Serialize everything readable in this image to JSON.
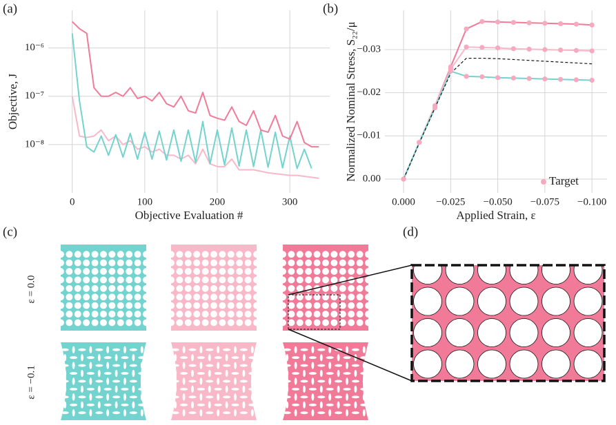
{
  "chart_data": [
    {
      "type": "line",
      "log": true,
      "grid": true,
      "x_label": "Objective Evaluation #",
      "y_label": "Objective, J",
      "xlim": [
        -33,
        355
      ],
      "ylim": [
        1e-09,
        6e-06
      ],
      "xticks": [
        0,
        100,
        200,
        300
      ],
      "yticks": [
        {
          "value": 1e-08,
          "label": "10⁻⁸"
        },
        {
          "value": 1e-07,
          "label": "10⁻⁷"
        },
        {
          "value": 1e-06,
          "label": "10⁻⁶"
        }
      ],
      "series": [
        {
          "color": "#f9b8c8",
          "x": [
            0,
            10,
            20,
            30,
            40,
            50,
            60,
            70,
            80,
            90,
            100,
            110,
            120,
            130,
            140,
            150,
            160,
            170,
            180,
            190,
            200,
            210,
            220,
            230,
            240,
            250,
            260,
            270,
            280,
            290,
            300,
            310,
            320,
            330,
            340
          ],
          "values": [
            1e-07,
            1.5e-08,
            1.4e-08,
            1.5e-08,
            2e-08,
            1.2e-08,
            1.5e-08,
            1e-08,
            1.2e-08,
            8e-09,
            9e-09,
            7e-09,
            8e-09,
            6e-09,
            6e-09,
            5e-09,
            6e-09,
            4e-09,
            8e-09,
            4e-09,
            3.5e-09,
            3.5e-09,
            5e-09,
            3e-09,
            3e-09,
            3e-09,
            2.8e-09,
            2.6e-09,
            2.5e-09,
            2.4e-09,
            2.3e-09,
            2.3e-09,
            2.2e-09,
            2.1e-09,
            2e-09
          ]
        },
        {
          "color": "#72d3cf",
          "x": [
            0,
            10,
            20,
            30,
            40,
            50,
            60,
            70,
            80,
            90,
            100,
            110,
            120,
            130,
            140,
            150,
            160,
            170,
            180,
            190,
            200,
            210,
            220,
            230,
            240,
            250,
            260,
            270,
            280,
            290,
            300,
            310,
            320,
            330
          ],
          "values": [
            2e-06,
            8e-08,
            9e-09,
            7e-09,
            1.5e-08,
            6e-09,
            1.6e-08,
            5.5e-09,
            1.7e-08,
            5e-09,
            1.8e-08,
            5e-09,
            1.9e-08,
            4.8e-09,
            2e-08,
            4.5e-09,
            2e-08,
            4.3e-09,
            3e-08,
            4e-09,
            2e-08,
            3.8e-09,
            2.2e-08,
            3.6e-09,
            2e-08,
            3.5e-09,
            2e-08,
            3.4e-09,
            1.8e-08,
            3.3e-09,
            1.5e-08,
            3.2e-09,
            8e-09,
            3.2e-09
          ]
        },
        {
          "color": "#f07a98",
          "x": [
            0,
            10,
            20,
            30,
            40,
            50,
            60,
            70,
            80,
            90,
            100,
            110,
            120,
            130,
            140,
            150,
            160,
            170,
            180,
            190,
            200,
            210,
            220,
            230,
            240,
            250,
            260,
            270,
            280,
            290,
            300,
            310,
            320,
            330,
            340
          ],
          "values": [
            3.5e-06,
            2.5e-06,
            2e-06,
            1.5e-07,
            1e-07,
            1e-07,
            1.2e-07,
            1e-07,
            1.5e-07,
            9e-08,
            1e-07,
            8e-08,
            1.2e-07,
            7e-08,
            6e-08,
            1e-07,
            5e-08,
            4.5e-08,
            1.2e-07,
            4e-08,
            3.5e-08,
            3.2e-08,
            6e-08,
            3e-08,
            2.5e-08,
            5e-08,
            2e-08,
            1.8e-08,
            4e-08,
            1.5e-08,
            1.3e-08,
            3e-08,
            1.1e-08,
            9e-09,
            9e-09
          ]
        }
      ]
    },
    {
      "type": "line",
      "grid": true,
      "legend": "lower right",
      "x_label": "Applied Strain, ε",
      "y_label": "Normalized Nominal Stress, S₂₂/μ",
      "xlim": [
        0.0099,
        -0.108
      ],
      "ylim": [
        0.0032,
        -0.0391
      ],
      "xticks": [
        {
          "value": 0,
          "label": "0.000"
        },
        {
          "value": -0.025,
          "label": "−0.025"
        },
        {
          "value": -0.05,
          "label": "−0.050"
        },
        {
          "value": -0.075,
          "label": "−0.075"
        },
        {
          "value": -0.1,
          "label": "−0.100"
        }
      ],
      "yticks": [
        {
          "value": 0,
          "label": "0.00"
        },
        {
          "value": -0.01,
          "label": "−0.01"
        },
        {
          "value": -0.02,
          "label": "−0.02"
        },
        {
          "value": -0.03,
          "label": "−0.03"
        }
      ],
      "x": [
        0,
        -0.00833,
        -0.01667,
        -0.025,
        -0.03333,
        -0.04167,
        -0.05,
        -0.05833,
        -0.06667,
        -0.075,
        -0.08333,
        -0.09167,
        -0.1
      ],
      "series": [
        {
          "color": "#f07a98",
          "values": [
            0,
            -0.0085,
            -0.017,
            -0.026,
            -0.0348,
            -0.0365,
            -0.0364,
            -0.0363,
            -0.0362,
            -0.0361,
            -0.036,
            -0.0359,
            -0.0357
          ]
        },
        {
          "color": "#f9b8c8",
          "values": [
            0,
            -0.0085,
            -0.017,
            -0.0255,
            -0.0306,
            -0.0305,
            -0.0304,
            -0.0302,
            -0.0301,
            -0.03,
            -0.0299,
            -0.0298,
            -0.0297
          ]
        },
        {
          "color": "#72d3cf",
          "values": [
            0,
            -0.0085,
            -0.0165,
            -0.025,
            -0.0238,
            -0.0237,
            -0.0235,
            -0.0234,
            -0.0233,
            -0.0232,
            -0.0231,
            -0.023,
            -0.0229
          ]
        },
        {
          "color": "#111111",
          "dash": true,
          "values": [
            0,
            -0.0083,
            -0.0165,
            -0.0245,
            -0.028,
            -0.028,
            -0.0279,
            -0.0277,
            -0.0275,
            -0.0273,
            -0.0271,
            -0.0269,
            -0.0267
          ]
        },
        {
          "name": "Target",
          "color": "#f7a9bf",
          "markers": true,
          "values": [
            0,
            -0.0085,
            -0.017,
            -0.026,
            -0.0348,
            -0.0365,
            -0.0364,
            -0.0363,
            -0.0362,
            -0.0361,
            -0.036,
            -0.0359,
            -0.0357
          ]
        },
        {
          "color": "#f7a9bf",
          "markers": true,
          "values": [
            0,
            -0.0085,
            -0.017,
            -0.0255,
            -0.0306,
            -0.0305,
            -0.0304,
            -0.0302,
            -0.0301,
            -0.03,
            -0.0299,
            -0.0298,
            -0.0297
          ]
        },
        {
          "color": "#f7a9bf",
          "markers": true,
          "values": [
            0,
            -0.0085,
            -0.0165,
            -0.025,
            -0.0238,
            -0.0237,
            -0.0235,
            -0.0234,
            -0.0233,
            -0.0232,
            -0.0231,
            -0.023,
            -0.0229
          ]
        }
      ]
    }
  ],
  "panels": [
    "(a)",
    "(b)",
    "(c)",
    "(d)"
  ],
  "strain_labels": [
    "ε = 0.0",
    "ε = −0.1"
  ]
}
